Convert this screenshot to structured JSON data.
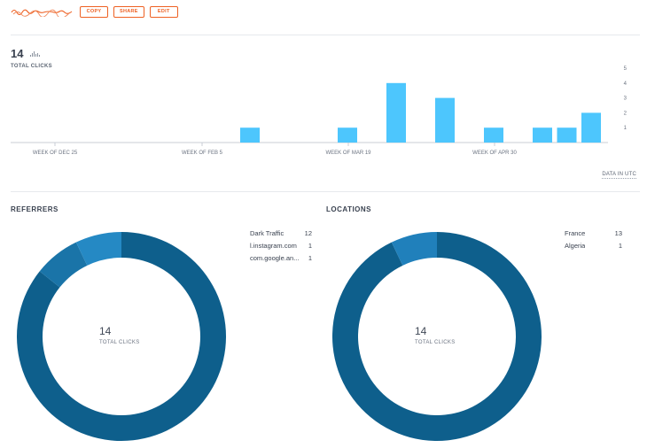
{
  "actions": {
    "link_text": "bit.ly/…",
    "copy_label": "COPY",
    "share_label": "SHARE",
    "edit_label": "EDIT"
  },
  "summary": {
    "total": "14",
    "total_label": "TOTAL CLICKS"
  },
  "chart_data": {
    "type": "bar",
    "title": "",
    "xlabel": "",
    "ylabel": "",
    "ylim": [
      0,
      5
    ],
    "y_ticks": [
      "1",
      "2",
      "3",
      "4",
      "5"
    ],
    "x_tick_labels": [
      "WEEK OF DEC 25",
      "WEEK OF FEB 5",
      "WEEK OF MAR 19",
      "WEEK OF APR 30"
    ],
    "bars": [
      {
        "week": 0,
        "value": 0
      },
      {
        "week": 1,
        "value": 0
      },
      {
        "week": 2,
        "value": 0
      },
      {
        "week": 3,
        "value": 0
      },
      {
        "week": 4,
        "value": 0
      },
      {
        "week": 5,
        "value": 0
      },
      {
        "week": 6,
        "value": 0
      },
      {
        "week": 7,
        "value": 0
      },
      {
        "week": 8,
        "value": 0
      },
      {
        "week": 9,
        "value": 1
      },
      {
        "week": 10,
        "value": 0
      },
      {
        "week": 11,
        "value": 0
      },
      {
        "week": 12,
        "value": 0
      },
      {
        "week": 13,
        "value": 1
      },
      {
        "week": 14,
        "value": 0
      },
      {
        "week": 15,
        "value": 4
      },
      {
        "week": 16,
        "value": 0
      },
      {
        "week": 17,
        "value": 3
      },
      {
        "week": 18,
        "value": 0
      },
      {
        "week": 19,
        "value": 1
      },
      {
        "week": 20,
        "value": 0
      },
      {
        "week": 21,
        "value": 1
      },
      {
        "week": 22,
        "value": 1
      },
      {
        "week": 23,
        "value": 2
      }
    ],
    "grid": false,
    "bar_color": "#4dc6fd"
  },
  "utc_note": "DATA IN UTC",
  "referrers": {
    "title": "REFERRERS",
    "total": "14",
    "total_label": "TOTAL CLICKS",
    "items": [
      {
        "label": "Dark Traffic",
        "value": "12",
        "color": "#0e5f8c"
      },
      {
        "label": "l.instagram.com",
        "value": "1",
        "color": "#1a74a8"
      },
      {
        "label": "com.google.an...",
        "value": "1",
        "color": "#2589c4"
      }
    ]
  },
  "locations": {
    "title": "LOCATIONS",
    "total": "14",
    "total_label": "TOTAL CLICKS",
    "items": [
      {
        "label": "France",
        "value": "13",
        "color": "#0e5f8c"
      },
      {
        "label": "Algeria",
        "value": "1",
        "color": "#2080bb"
      }
    ]
  }
}
